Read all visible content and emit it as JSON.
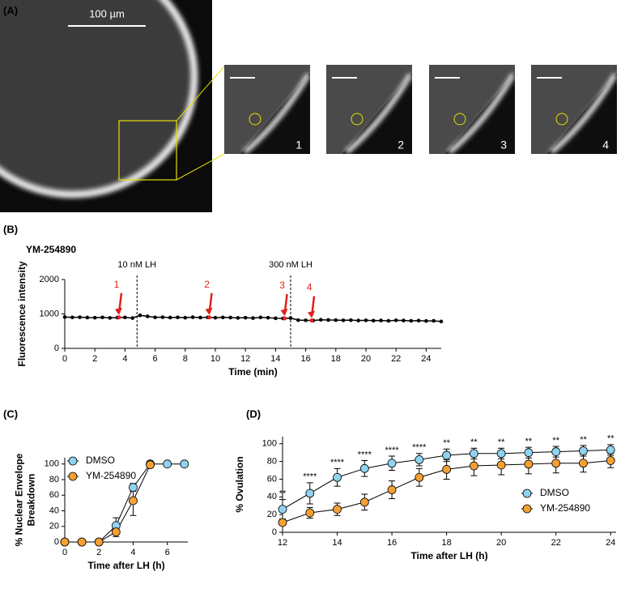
{
  "panel_labels": [
    "(A)",
    "(B)",
    "(C)",
    "(D)"
  ],
  "image_panel": {
    "scale_bar": "100 µm",
    "insets": [
      "1",
      "2",
      "3",
      "4"
    ]
  },
  "chart_data": [
    {
      "type": "line",
      "subtitle": "YM-254890",
      "ylabel": [
        "Fluorescence intensity"
      ],
      "xlabel": "Time (min)",
      "color": "#000000",
      "x": [
        0,
        0.5,
        1,
        1.5,
        2,
        2.5,
        3,
        3.5,
        4,
        4.5,
        5,
        5.5,
        6,
        6.5,
        7,
        7.5,
        8,
        8.5,
        9,
        9.5,
        10,
        10.5,
        11,
        11.5,
        12,
        12.5,
        13,
        13.5,
        14,
        14.5,
        15,
        15.5,
        16,
        16.5,
        17,
        17.5,
        18,
        18.5,
        19,
        19.5,
        20,
        20.5,
        21,
        21.5,
        22,
        22.5,
        23,
        23.5,
        24,
        24.5,
        25
      ],
      "values": [
        910,
        900,
        905,
        895,
        890,
        900,
        885,
        895,
        900,
        880,
        960,
        930,
        900,
        905,
        895,
        900,
        890,
        905,
        895,
        900,
        890,
        900,
        895,
        885,
        890,
        880,
        900,
        890,
        875,
        870,
        880,
        820,
        815,
        810,
        830,
        825,
        820,
        815,
        820,
        810,
        815,
        805,
        810,
        800,
        815,
        810,
        800,
        805,
        795,
        800,
        780
      ],
      "xlim": [
        0,
        25
      ],
      "xticks": [
        0,
        2,
        4,
        6,
        8,
        10,
        12,
        14,
        16,
        18,
        20,
        22,
        24
      ],
      "ylim": [
        0,
        2000
      ],
      "yticks": [
        0,
        1000,
        2000
      ],
      "vlines": [
        {
          "x": 4.8,
          "label": "10 nM LH"
        },
        {
          "x": 15,
          "label": "300 nM LH"
        }
      ],
      "annotations": [
        {
          "text": "1",
          "x": 3.6,
          "y": 900,
          "color": "#e0201b"
        },
        {
          "text": "2",
          "x": 9.6,
          "y": 900,
          "color": "#e0201b"
        },
        {
          "text": "3",
          "x": 14.6,
          "y": 870,
          "color": "#e0201b"
        },
        {
          "text": "4",
          "x": 16.4,
          "y": 810,
          "color": "#e0201b"
        }
      ]
    },
    {
      "type": "errorline",
      "ylabel": [
        "% Nuclear Envelope",
        "Breakdown"
      ],
      "xlabel": "Time after LH (h)",
      "x": [
        0,
        1,
        2,
        3,
        4,
        5,
        6,
        7
      ],
      "xlim": [
        0,
        7.2
      ],
      "xticks": [
        0,
        2,
        4,
        6
      ],
      "ylim": [
        0,
        108
      ],
      "yticks": [
        0,
        20,
        40,
        60,
        80,
        100
      ],
      "legend": "upper left",
      "series": [
        {
          "name": "DMSO",
          "color": "#8fd3f0",
          "values": [
            0,
            0,
            0,
            21,
            70,
            100,
            100,
            100
          ],
          "errors": [
            0,
            0,
            0,
            10,
            5,
            0,
            0,
            0
          ]
        },
        {
          "name": "YM-254890",
          "color": "#f5a033",
          "values": [
            0,
            0,
            0,
            13,
            53,
            99,
            null,
            null
          ],
          "errors": [
            0,
            0,
            0,
            6,
            19,
            2,
            null,
            null
          ]
        }
      ]
    },
    {
      "type": "errorline",
      "ylabel": [
        "% Ovulation"
      ],
      "xlabel": "Time after LH (h)",
      "x": [
        12,
        13,
        14,
        15,
        16,
        17,
        18,
        19,
        20,
        21,
        22,
        23,
        24
      ],
      "xlim": [
        12,
        24.2
      ],
      "xticks": [
        12,
        14,
        16,
        18,
        20,
        22,
        24
      ],
      "ylim": [
        0,
        108
      ],
      "yticks": [
        0,
        20,
        40,
        60,
        80,
        100
      ],
      "legend": "lower right",
      "significance": [
        "**",
        "****",
        "****",
        "****",
        "****",
        "****",
        "**",
        "**",
        "**",
        "**",
        "**",
        "**",
        "**"
      ],
      "series": [
        {
          "name": "DMSO",
          "color": "#8fd3f0",
          "values": [
            26,
            44,
            62,
            72,
            78,
            82,
            87,
            89,
            89,
            90,
            91,
            92,
            93
          ],
          "errors": [
            11,
            12,
            10,
            9,
            8,
            7,
            7,
            6,
            6,
            6,
            6,
            6,
            6
          ]
        },
        {
          "name": "YM-254890",
          "color": "#f5a033",
          "values": [
            11,
            22,
            26,
            34,
            48,
            62,
            71,
            75,
            76,
            77,
            78,
            78,
            81
          ],
          "errors": [
            3,
            6,
            7,
            9,
            10,
            10,
            11,
            11,
            11,
            11,
            11,
            10,
            8
          ]
        }
      ]
    }
  ]
}
